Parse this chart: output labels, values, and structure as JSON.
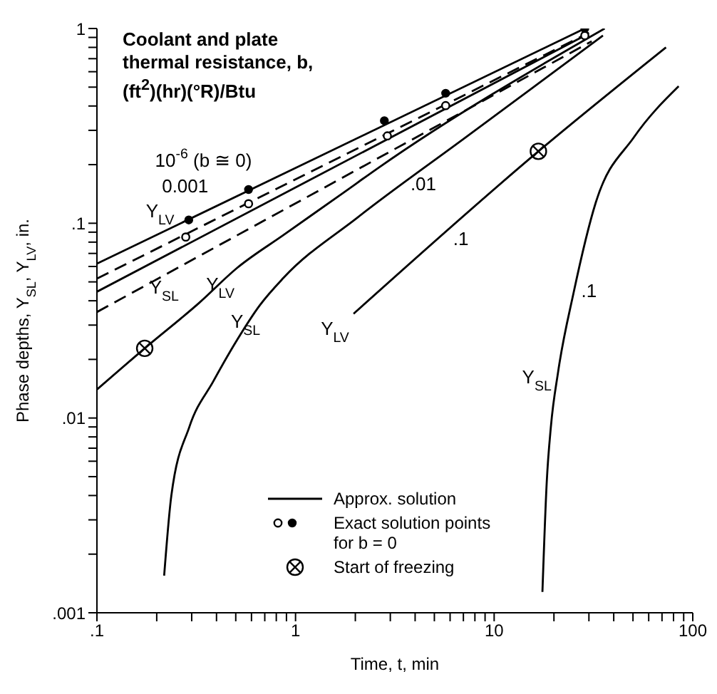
{
  "chart_data": {
    "type": "line",
    "xlabel": "Time, t, min",
    "ylabel": "Phase depths, Y$_{SL}$, Y$_{LV}$, in.",
    "log": "xy",
    "grid": false,
    "legend": "bottom right",
    "xlim": [
      0.1,
      100
    ],
    "ylim": [
      0.001,
      1
    ],
    "xticks": [
      {
        "value": 0.1,
        "label": ".1"
      },
      {
        "value": 0.2,
        "label": null
      },
      {
        "value": 0.3,
        "label": null
      },
      {
        "value": 0.4,
        "label": null
      },
      {
        "value": 0.5,
        "label": null
      },
      {
        "value": 0.6,
        "label": null
      },
      {
        "value": 0.7,
        "label": null
      },
      {
        "value": 0.8,
        "label": null
      },
      {
        "value": 0.9,
        "label": null
      },
      1,
      {
        "value": 2,
        "label": null
      },
      {
        "value": 3,
        "label": null
      },
      {
        "value": 4,
        "label": null
      },
      {
        "value": 5,
        "label": null
      },
      {
        "value": 6,
        "label": null
      },
      {
        "value": 7,
        "label": null
      },
      {
        "value": 8,
        "label": null
      },
      {
        "value": 9,
        "label": null
      },
      10,
      {
        "value": 20,
        "label": null
      },
      {
        "value": 30,
        "label": null
      },
      {
        "value": 40,
        "label": null
      },
      {
        "value": 50,
        "label": null
      },
      {
        "value": 60,
        "label": null
      },
      {
        "value": 70,
        "label": null
      },
      {
        "value": 80,
        "label": null
      },
      {
        "value": 90,
        "label": null
      },
      100
    ],
    "yticks": [
      {
        "value": 0.001,
        "label": ".001"
      },
      {
        "value": 0.002,
        "label": null
      },
      {
        "value": 0.003,
        "label": null
      },
      {
        "value": 0.004,
        "label": null
      },
      {
        "value": 0.005,
        "label": null
      },
      {
        "value": 0.006,
        "label": null
      },
      {
        "value": 0.007,
        "label": null
      },
      {
        "value": 0.008,
        "label": null
      },
      {
        "value": 0.009,
        "label": null
      },
      {
        "value": 0.01,
        "label": ".01"
      },
      {
        "value": 0.02,
        "label": null
      },
      {
        "value": 0.03,
        "label": null
      },
      {
        "value": 0.04,
        "label": null
      },
      {
        "value": 0.05,
        "label": null
      },
      {
        "value": 0.06,
        "label": null
      },
      {
        "value": 0.07,
        "label": null
      },
      {
        "value": 0.08,
        "label": null
      },
      {
        "value": 0.09,
        "label": null
      },
      {
        "value": 0.1,
        "label": ".1"
      },
      {
        "value": 0.2,
        "label": null
      },
      {
        "value": 0.3,
        "label": null
      },
      {
        "value": 0.4,
        "label": null
      },
      {
        "value": 0.5,
        "label": null
      },
      {
        "value": 0.6,
        "label": null
      },
      {
        "value": 0.7,
        "label": null
      },
      {
        "value": 0.8,
        "label": null
      },
      {
        "value": 0.9,
        "label": null
      },
      1
    ],
    "series": [
      {
        "type": "line",
        "name": "Approx. solution",
        "color": "#000000",
        "line_style": "solid",
        "x": [
          0.1,
          28.6
        ],
        "values": [
          0.062,
          1.0
        ]
      },
      {
        "type": "line",
        "color": "#000000",
        "line_style": "dashed",
        "x": [
          0.1,
          30
        ],
        "values": [
          0.052,
          0.95
        ]
      },
      {
        "type": "line",
        "color": "#000000",
        "line_style": "solid",
        "x": [
          0.1,
          28.6
        ],
        "values": [
          0.0445,
          0.92
        ]
      },
      {
        "type": "line",
        "color": "#000000",
        "line_style": "dashed",
        "x": [
          0.1,
          31
        ],
        "values": [
          0.035,
          0.86
        ]
      },
      {
        "type": "line",
        "color": "#000000",
        "line_style": "solid",
        "x": [
          0.1,
          0.174,
          0.327,
          0.508,
          0.869,
          1.75,
          2.62,
          36
        ],
        "values": [
          0.014,
          0.0228,
          0.039,
          0.059,
          0.087,
          0.144,
          0.193,
          1.0
        ]
      },
      {
        "type": "line",
        "color": "#000000",
        "line_style": "solid",
        "x": [
          0.218,
          0.237,
          0.292,
          0.385,
          0.508,
          0.659,
          0.869,
          2.05,
          7.18,
          35.3
        ],
        "values": [
          0.00155,
          0.004,
          0.009,
          0.0154,
          0.0252,
          0.0378,
          0.0524,
          0.107,
          0.276,
          0.92
        ]
      },
      {
        "type": "line",
        "color": "#000000",
        "line_style": "solid",
        "x": [
          1.96,
          16.7,
          73.3
        ],
        "values": [
          0.0343,
          0.234,
          0.8
        ]
      },
      {
        "type": "line",
        "color": "#000000",
        "line_style": "solid",
        "x": [
          17.5,
          18.4,
          19.3,
          21.0,
          25.1,
          32.5,
          50.5,
          84.9
        ],
        "values": [
          0.00128,
          0.0047,
          0.009,
          0.0173,
          0.0438,
          0.128,
          0.276,
          0.505
        ]
      },
      {
        "type": "scatter",
        "name": "Exact solution points for b = 0",
        "color": "#000000",
        "marker": "circle",
        "x": [
          0.29,
          0.58,
          2.8,
          5.7,
          28.6
        ],
        "values": [
          0.104,
          0.149,
          0.336,
          0.465,
          1.0
        ]
      },
      {
        "type": "scatter",
        "color": "#000000",
        "marker": "circle-open",
        "x": [
          0.28,
          0.58,
          2.9,
          5.7,
          28.6
        ],
        "values": [
          0.085,
          0.126,
          0.281,
          0.402,
          0.92
        ]
      },
      {
        "type": "scatter",
        "name": "Start of freezing",
        "color": "#000000",
        "marker": "cross",
        "x": [
          0.174,
          16.7
        ],
        "values": [
          0.0228,
          0.234
        ]
      }
    ],
    "annotations": [
      "Coolant and plate thermal resistance, b, (ft$^{2}$)(hr)(°R)/Btu",
      "10$^{-6}$ (b ≅ 0)",
      "0.001",
      "Y$_{LV}$",
      "Y$_{SL}$",
      "Y$_{LV}$",
      "Y$_{SL}$",
      "Y$_{LV}$",
      ".01",
      ".1",
      ".1",
      "Y$_{SL}$"
    ]
  }
}
